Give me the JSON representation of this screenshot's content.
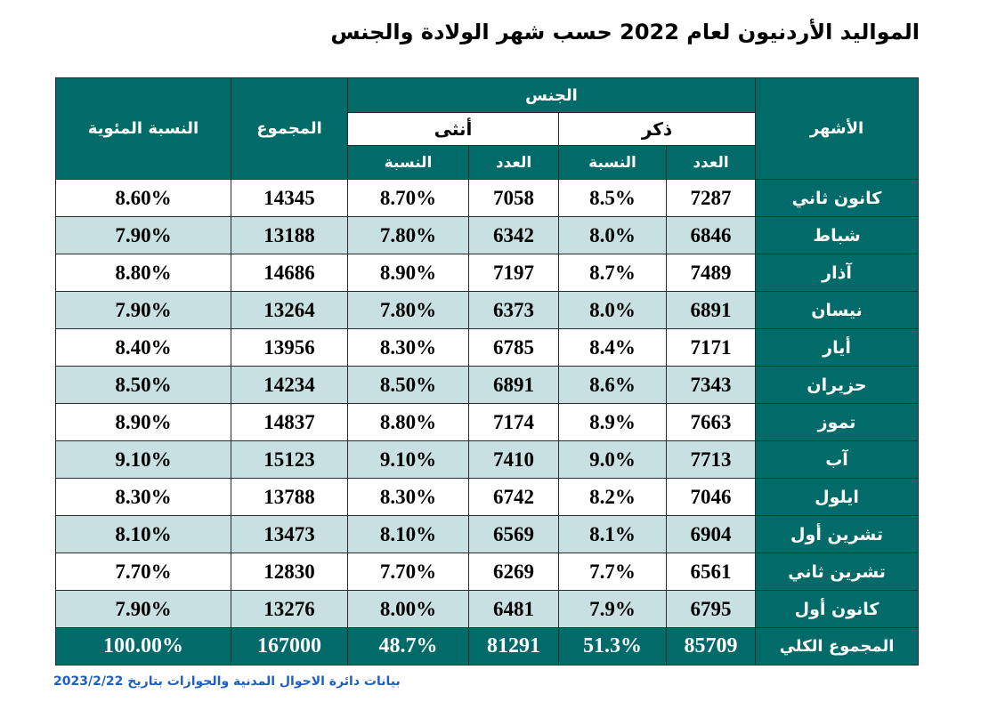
{
  "title": "المواليد الأردنيون لعام 2022 حسب شهر الولادة والجنس",
  "headers": {
    "months": "الأشهر",
    "gender": "الجنس",
    "male": "ذكر",
    "female": "أنثى",
    "count": "العدد",
    "ratio": "النسبة",
    "total": "المجموع",
    "percent": "النسبة المئوية"
  },
  "rows": [
    {
      "month": "كانون ثاني",
      "male_count": "7287",
      "male_ratio": "8.5%",
      "female_count": "7058",
      "female_ratio": "8.70%",
      "total": "14345",
      "percent": "8.60%"
    },
    {
      "month": "شباط",
      "male_count": "6846",
      "male_ratio": "8.0%",
      "female_count": "6342",
      "female_ratio": "7.80%",
      "total": "13188",
      "percent": "7.90%"
    },
    {
      "month": "آذار",
      "male_count": "7489",
      "male_ratio": "8.7%",
      "female_count": "7197",
      "female_ratio": "8.90%",
      "total": "14686",
      "percent": "8.80%"
    },
    {
      "month": "نيسان",
      "male_count": "6891",
      "male_ratio": "8.0%",
      "female_count": "6373",
      "female_ratio": "7.80%",
      "total": "13264",
      "percent": "7.90%"
    },
    {
      "month": "أيار",
      "male_count": "7171",
      "male_ratio": "8.4%",
      "female_count": "6785",
      "female_ratio": "8.30%",
      "total": "13956",
      "percent": "8.40%"
    },
    {
      "month": "حزيران",
      "male_count": "7343",
      "male_ratio": "8.6%",
      "female_count": "6891",
      "female_ratio": "8.50%",
      "total": "14234",
      "percent": "8.50%"
    },
    {
      "month": "تموز",
      "male_count": "7663",
      "male_ratio": "8.9%",
      "female_count": "7174",
      "female_ratio": "8.80%",
      "total": "14837",
      "percent": "8.90%"
    },
    {
      "month": "آب",
      "male_count": "7713",
      "male_ratio": "9.0%",
      "female_count": "7410",
      "female_ratio": "9.10%",
      "total": "15123",
      "percent": "9.10%"
    },
    {
      "month": "ايلول",
      "male_count": "7046",
      "male_ratio": "8.2%",
      "female_count": "6742",
      "female_ratio": "8.30%",
      "total": "13788",
      "percent": "8.30%"
    },
    {
      "month": "تشرين أول",
      "male_count": "6904",
      "male_ratio": "8.1%",
      "female_count": "6569",
      "female_ratio": "8.10%",
      "total": "13473",
      "percent": "8.10%"
    },
    {
      "month": "تشرين ثاني",
      "male_count": "6561",
      "male_ratio": "7.7%",
      "female_count": "6269",
      "female_ratio": "7.70%",
      "total": "12830",
      "percent": "7.70%"
    },
    {
      "month": "كانون أول",
      "male_count": "6795",
      "male_ratio": "7.9%",
      "female_count": "6481",
      "female_ratio": "8.00%",
      "total": "13276",
      "percent": "7.90%"
    }
  ],
  "total_row": {
    "month": "المجموع الكلي",
    "male_count": "85709",
    "male_ratio": "51.3%",
    "female_count": "81291",
    "female_ratio": "48.7%",
    "total": "167000",
    "percent": "100.00%"
  },
  "source": "بيانات دائرة الاحوال المدنية والجوازات بتاريخ 2023/2/22",
  "colors": {
    "header": "#006b68",
    "alt_row": "#c9e0e3",
    "source_text": "#1f5fbf"
  }
}
